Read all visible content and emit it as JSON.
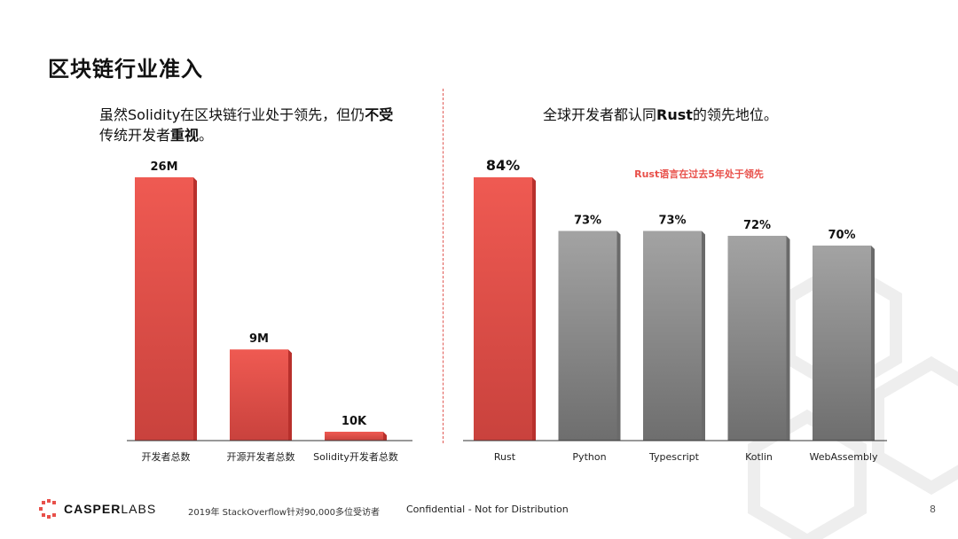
{
  "slide": {
    "title": "区块链行业准入",
    "left_subtitle_a": "虽然Solidity在区块链行业处于领先，但仍",
    "left_subtitle_bold_a": "不受",
    "left_subtitle_b": "传统开发者",
    "left_subtitle_bold_b": "重视",
    "left_subtitle_c": "。",
    "right_subtitle_a": "全球开发者都认同",
    "right_subtitle_bold": "Rust",
    "right_subtitle_b": "的领先地位。",
    "annotation": "Rust语言在过去5年处于领先"
  },
  "footer": {
    "brand_bold": "CASPER",
    "brand_light": "LABS",
    "source": "2019年 StackOverflow针对90,000多位受访者",
    "confidential": "Confidential - Not for Distribution",
    "page": "8"
  },
  "colors": {
    "red": "#e8504a",
    "red_dark": "#b8302c",
    "gray": "#9a9a9a",
    "gray_dark": "#7a7a7a",
    "brand": "#e8504a"
  },
  "chart_data": [
    {
      "type": "bar",
      "categories": [
        "开发者总数",
        "开源开发者总数",
        "Solidity开发者总数"
      ],
      "values": [
        26000000,
        9000000,
        10000
      ],
      "value_labels": [
        "26M",
        "9M",
        "10K"
      ],
      "title": "",
      "xlabel": "",
      "ylabel": "",
      "ylim": [
        0,
        27000000
      ]
    },
    {
      "type": "bar",
      "categories": [
        "Rust",
        "Python",
        "Typescript",
        "Kotlin",
        "WebAssembly"
      ],
      "values": [
        84,
        73,
        73,
        72,
        70
      ],
      "value_labels": [
        "84%",
        "73%",
        "73%",
        "72%",
        "70%"
      ],
      "highlight": "Rust",
      "title": "",
      "xlabel": "",
      "ylabel": "",
      "ylim": [
        0,
        100
      ]
    }
  ]
}
